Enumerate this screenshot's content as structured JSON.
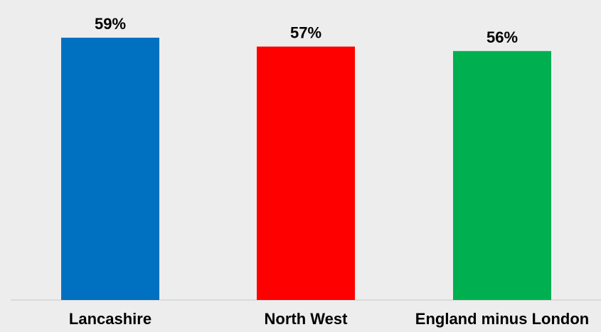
{
  "chart_data": {
    "type": "bar",
    "categories": [
      "Lancashire",
      "North West",
      "England minus London"
    ],
    "values": [
      59,
      57,
      56
    ],
    "data_labels": [
      "59%",
      "57%",
      "56%"
    ],
    "colors": [
      "#0070c0",
      "#ff0000",
      "#00b050"
    ],
    "background": "#ededed",
    "title": "",
    "xlabel": "",
    "ylabel": "",
    "ylim": [
      0,
      63
    ],
    "grid": false,
    "legend": "none"
  }
}
